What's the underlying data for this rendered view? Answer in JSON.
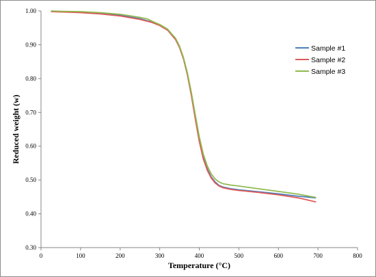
{
  "chart_data": {
    "type": "line",
    "title": "",
    "xlabel": "Temperature (°C)",
    "ylabel": "Reduced weight (w)",
    "xlim": [
      0,
      800
    ],
    "ylim": [
      0.3,
      1.0
    ],
    "x_ticks": [
      "0",
      "100",
      "200",
      "300",
      "400",
      "500",
      "600",
      "700",
      "800"
    ],
    "y_ticks": [
      "0.30",
      "0.40",
      "0.50",
      "0.60",
      "0.70",
      "0.80",
      "0.90",
      "1.00"
    ],
    "grid": false,
    "legend_position": "right",
    "series": [
      {
        "name": "Sample #1",
        "color": "#4a7ebb",
        "points": [
          [
            25,
            0.999
          ],
          [
            50,
            0.998
          ],
          [
            100,
            0.996
          ],
          [
            150,
            0.993
          ],
          [
            200,
            0.987
          ],
          [
            250,
            0.977
          ],
          [
            280,
            0.967
          ],
          [
            300,
            0.958
          ],
          [
            320,
            0.944
          ],
          [
            340,
            0.916
          ],
          [
            350,
            0.893
          ],
          [
            360,
            0.859
          ],
          [
            370,
            0.813
          ],
          [
            380,
            0.754
          ],
          [
            390,
            0.685
          ],
          [
            400,
            0.62
          ],
          [
            410,
            0.568
          ],
          [
            420,
            0.533
          ],
          [
            430,
            0.509
          ],
          [
            440,
            0.494
          ],
          [
            450,
            0.484
          ],
          [
            460,
            0.479
          ],
          [
            480,
            0.474
          ],
          [
            500,
            0.471
          ],
          [
            550,
            0.465
          ],
          [
            600,
            0.459
          ],
          [
            650,
            0.452
          ],
          [
            695,
            0.447
          ]
        ]
      },
      {
        "name": "Sample #2",
        "color": "#e05a57",
        "points": [
          [
            25,
            0.998
          ],
          [
            50,
            0.997
          ],
          [
            100,
            0.995
          ],
          [
            150,
            0.991
          ],
          [
            200,
            0.985
          ],
          [
            250,
            0.975
          ],
          [
            280,
            0.966
          ],
          [
            300,
            0.957
          ],
          [
            320,
            0.943
          ],
          [
            340,
            0.915
          ],
          [
            350,
            0.892
          ],
          [
            360,
            0.858
          ],
          [
            370,
            0.811
          ],
          [
            380,
            0.75
          ],
          [
            390,
            0.68
          ],
          [
            400,
            0.614
          ],
          [
            410,
            0.563
          ],
          [
            420,
            0.529
          ],
          [
            430,
            0.506
          ],
          [
            440,
            0.491
          ],
          [
            450,
            0.482
          ],
          [
            460,
            0.477
          ],
          [
            480,
            0.472
          ],
          [
            500,
            0.469
          ],
          [
            550,
            0.463
          ],
          [
            600,
            0.456
          ],
          [
            650,
            0.447
          ],
          [
            695,
            0.435
          ]
        ]
      },
      {
        "name": "Sample #3",
        "color": "#8fba4f",
        "points": [
          [
            25,
            1.0
          ],
          [
            50,
            0.999
          ],
          [
            100,
            0.998
          ],
          [
            150,
            0.995
          ],
          [
            200,
            0.99
          ],
          [
            250,
            0.981
          ],
          [
            270,
            0.976
          ],
          [
            280,
            0.97
          ],
          [
            300,
            0.96
          ],
          [
            320,
            0.946
          ],
          [
            340,
            0.919
          ],
          [
            350,
            0.896
          ],
          [
            360,
            0.862
          ],
          [
            370,
            0.817
          ],
          [
            380,
            0.759
          ],
          [
            390,
            0.692
          ],
          [
            400,
            0.628
          ],
          [
            410,
            0.577
          ],
          [
            420,
            0.542
          ],
          [
            430,
            0.518
          ],
          [
            440,
            0.503
          ],
          [
            450,
            0.494
          ],
          [
            460,
            0.489
          ],
          [
            480,
            0.485
          ],
          [
            500,
            0.482
          ],
          [
            550,
            0.474
          ],
          [
            600,
            0.466
          ],
          [
            650,
            0.458
          ],
          [
            695,
            0.448
          ]
        ]
      }
    ]
  }
}
